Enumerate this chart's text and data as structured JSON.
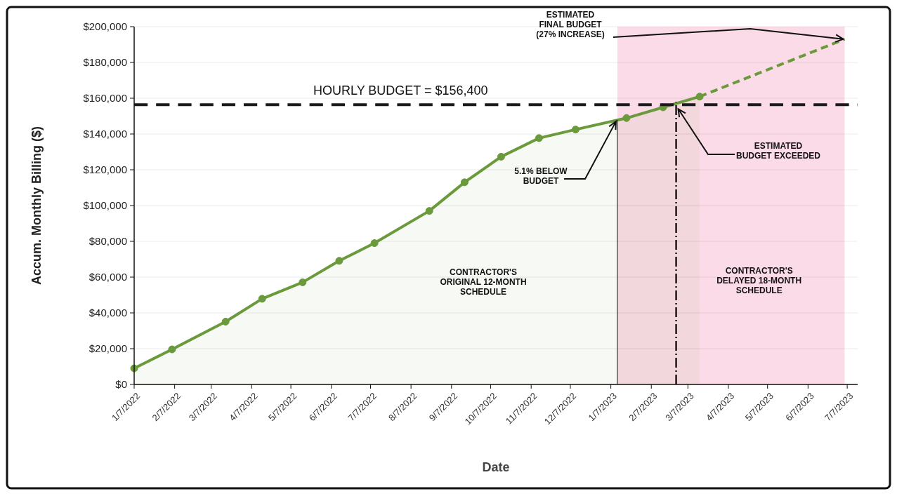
{
  "chart_data": {
    "type": "line",
    "xlabel": "Date",
    "ylabel": "Accum. Monthly Billing ($)",
    "xlim": [
      "2022-01-07",
      "2023-07-15"
    ],
    "ylim": [
      0,
      200000
    ],
    "xticks": [
      {
        "value": "2022-01-07",
        "label": "1/7/2022"
      },
      {
        "value": "2022-02-07",
        "label": "2/7/2022"
      },
      {
        "value": "2022-03-07",
        "label": "3/7/2022"
      },
      {
        "value": "2022-04-07",
        "label": "4/7/2022"
      },
      {
        "value": "2022-05-07",
        "label": "5/7/2022"
      },
      {
        "value": "2022-06-07",
        "label": "6/7/2022"
      },
      {
        "value": "2022-07-07",
        "label": "7/7/2022"
      },
      {
        "value": "2022-08-07",
        "label": "8/7/2022"
      },
      {
        "value": "2022-09-07",
        "label": "9/7/2022"
      },
      {
        "value": "2022-10-07",
        "label": "10/7/2022"
      },
      {
        "value": "2022-11-07",
        "label": "11/7/2022"
      },
      {
        "value": "2022-12-07",
        "label": "12/7/2022"
      },
      {
        "value": "2023-01-07",
        "label": "1/7/2023"
      },
      {
        "value": "2023-02-07",
        "label": "2/7/2023"
      },
      {
        "value": "2023-03-07",
        "label": "3/7/2023"
      },
      {
        "value": "2023-04-07",
        "label": "4/7/2023"
      },
      {
        "value": "2023-05-07",
        "label": "5/7/2023"
      },
      {
        "value": "2023-06-07",
        "label": "6/7/2023"
      },
      {
        "value": "2023-07-07",
        "label": "7/7/2023"
      }
    ],
    "yticks": [
      {
        "value": 0,
        "label": "$0"
      },
      {
        "value": 20000,
        "label": "$20,000"
      },
      {
        "value": 40000,
        "label": "$40,000"
      },
      {
        "value": 60000,
        "label": "$60,000"
      },
      {
        "value": 80000,
        "label": "$80,000"
      },
      {
        "value": 100000,
        "label": "$100,000"
      },
      {
        "value": 120000,
        "label": "$120,000"
      },
      {
        "value": 140000,
        "label": "$140,000"
      },
      {
        "value": 160000,
        "label": "$160,000"
      },
      {
        "value": 180000,
        "label": "$180,000"
      },
      {
        "value": 200000,
        "label": "$200,000"
      }
    ],
    "grid": "y",
    "series": [
      {
        "type": "area",
        "color": "#6b9a3c",
        "marker": "circle",
        "line_style": "solid",
        "x": [
          "2022-01-07",
          "2022-02-05",
          "2022-03-18",
          "2022-04-15",
          "2022-05-16",
          "2022-06-13",
          "2022-07-10",
          "2022-08-21",
          "2022-09-17",
          "2022-10-15",
          "2022-11-13",
          "2022-12-11",
          "2023-01-19",
          "2023-02-16",
          "2023-03-16"
        ],
        "values": [
          9000,
          19600,
          35100,
          47900,
          57100,
          69100,
          79000,
          97000,
          113000,
          127300,
          137700,
          142500,
          148900,
          154900,
          160900
        ]
      },
      {
        "type": "line",
        "color": "#6b9a3c",
        "marker": "none",
        "line_style": "dashed",
        "x": [
          "2023-03-16",
          "2023-07-05"
        ],
        "values": [
          160900,
          193000
        ]
      }
    ],
    "ref_lines": [
      {
        "axis": "y",
        "value": 156400,
        "label": "HOURLY BUDGET = $156,400",
        "color": "#1a1a1a",
        "line_style": "dashed"
      },
      {
        "axis": "x",
        "value": "2023-01-12",
        "color": "#333333",
        "line_style": "solid"
      },
      {
        "axis": "x",
        "value": "2023-02-26",
        "color": "#1a1a1a",
        "line_style": "dashed"
      }
    ],
    "bands": [
      {
        "axis": "x",
        "from": "2023-01-12",
        "to": "2023-07-05",
        "label": "CONTRACTOR'S\nDELAYED 18-MONTH\nSCHEDULE",
        "color": "#fbdbe7"
      }
    ],
    "annotations": [
      "CONTRACTOR'S\nORIGINAL 12-MONTH\nSCHEDULE",
      {
        "text": "5.1% BELOW\nBUDGET",
        "x": "2023-01-12",
        "y": 147000
      },
      {
        "text": "ESTIMATED\nBUDGET EXCEEDED",
        "x": "2023-02-26",
        "y": 154000
      },
      {
        "text": "ESTIMATED\nFINAL BUDGET\n(27% INCREASE)",
        "x": "2023-07-05",
        "y": 193000
      }
    ]
  }
}
